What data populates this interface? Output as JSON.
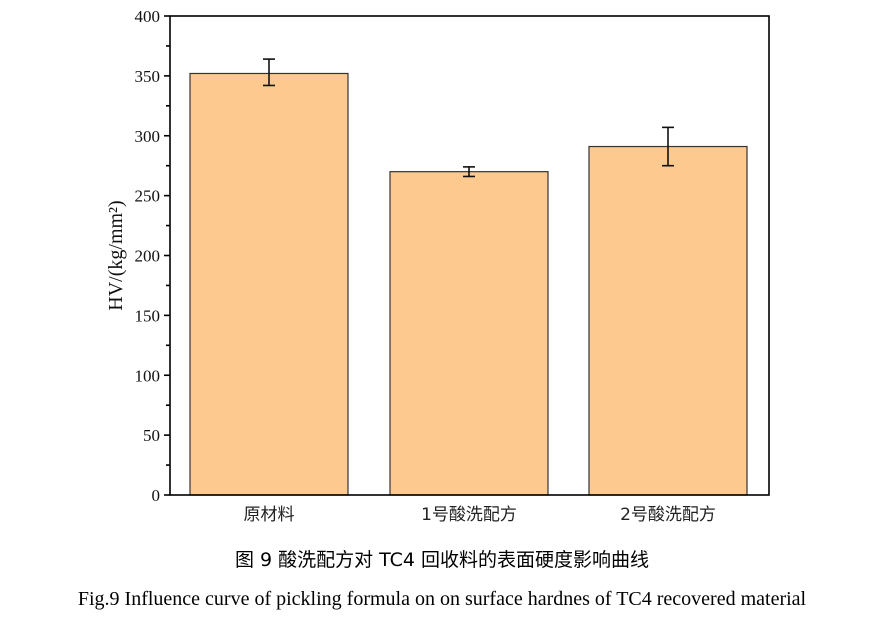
{
  "chart_data": {
    "type": "bar",
    "categories": [
      "原材料",
      "1号酸洗配方",
      "2号酸洗配方"
    ],
    "values": [
      352,
      270,
      291
    ],
    "error_low": [
      342,
      266,
      275
    ],
    "error_high": [
      364,
      274,
      307
    ],
    "xlabel": "",
    "ylabel": "HV/(kg/mm²)",
    "ylim": [
      0,
      400
    ],
    "yticks": [
      0,
      50,
      100,
      150,
      200,
      250,
      300,
      350,
      400
    ],
    "grid": false,
    "bar_color": "#fdc98f",
    "edge_color": "#333333"
  },
  "caption_cn": "图 9  酸洗配方对 TC4 回收料的表面硬度影响曲线",
  "caption_en": "Fig.9 Influence curve of pickling formula on on surface hardnes of TC4 recovered material"
}
